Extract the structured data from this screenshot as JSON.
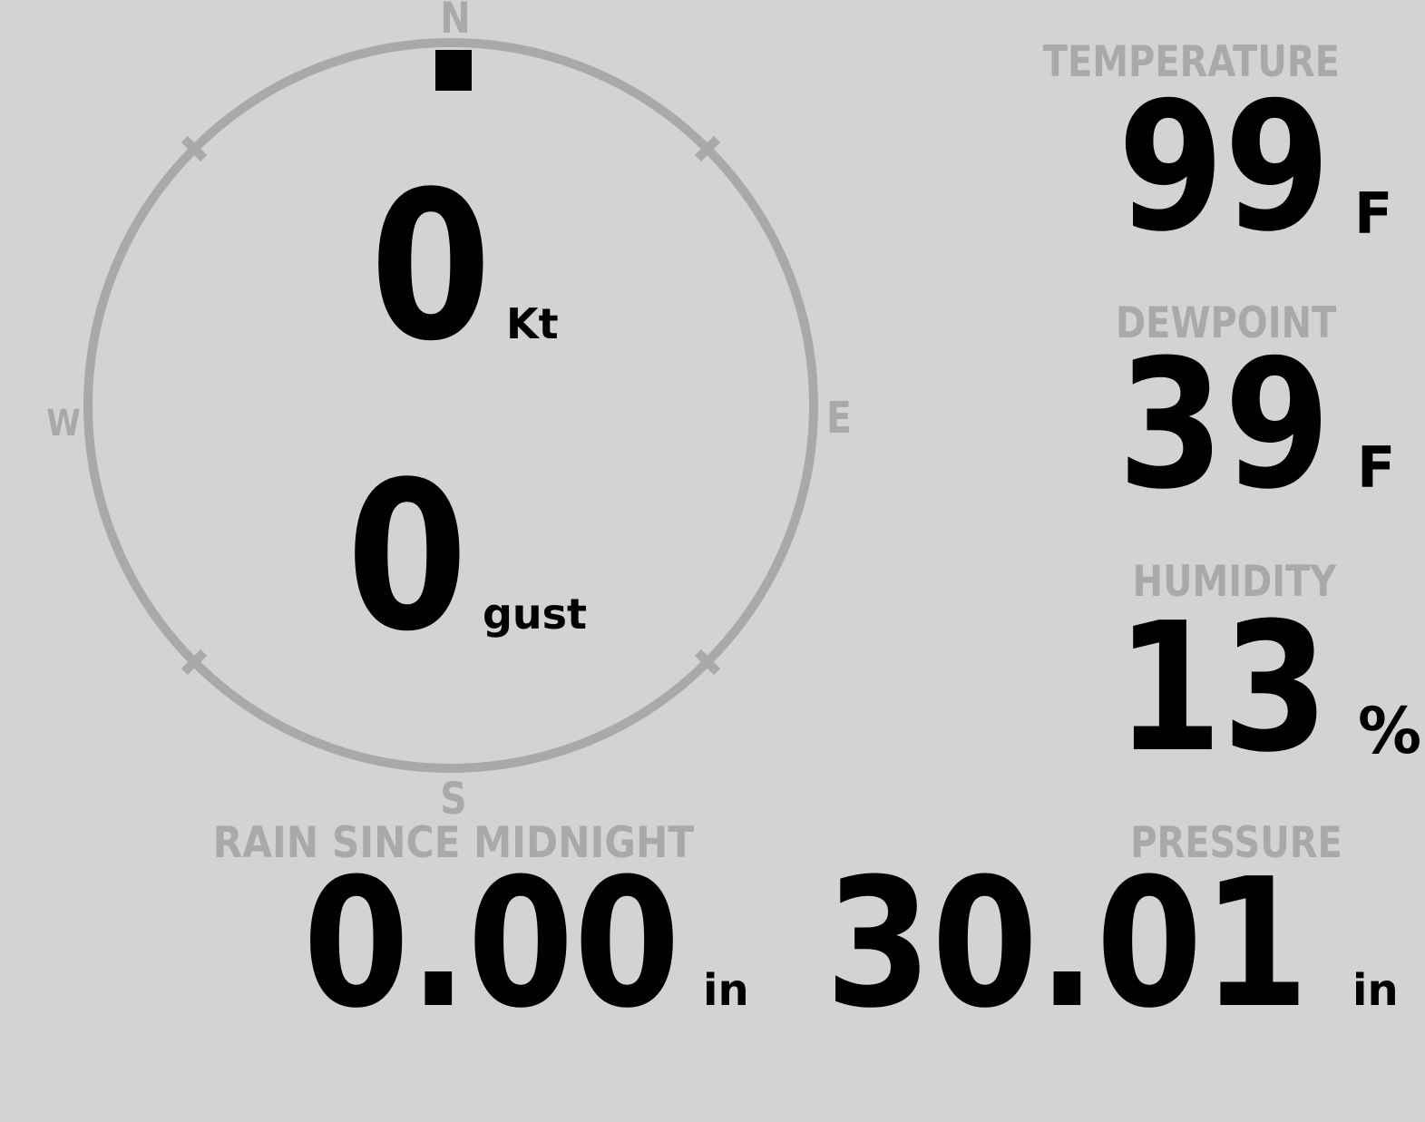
{
  "display": {
    "colors": {
      "background": "#d3d3d3",
      "muted": "#a9a9a9",
      "text": "#000000",
      "marker": "#000000"
    }
  },
  "compass": {
    "cardinals": {
      "north": "N",
      "east": "E",
      "south": "S",
      "west": "W"
    },
    "wind": {
      "direction": "N",
      "speed_value": "0",
      "speed_unit": "Kt",
      "gust_value": "0",
      "gust_unit": "gust"
    }
  },
  "metrics": {
    "temperature": {
      "label": "TEMPERATURE",
      "value": "99",
      "unit": "F"
    },
    "dewpoint": {
      "label": "DEWPOINT",
      "value": "39",
      "unit": "F"
    },
    "humidity": {
      "label": "HUMIDITY",
      "value": "13",
      "unit": "%"
    },
    "rain_since_midnight": {
      "label": "RAIN SINCE MIDNIGHT",
      "value": "0.00",
      "unit": "in"
    },
    "pressure": {
      "label": "PRESSURE",
      "value": "30.01",
      "unit": "in"
    }
  }
}
